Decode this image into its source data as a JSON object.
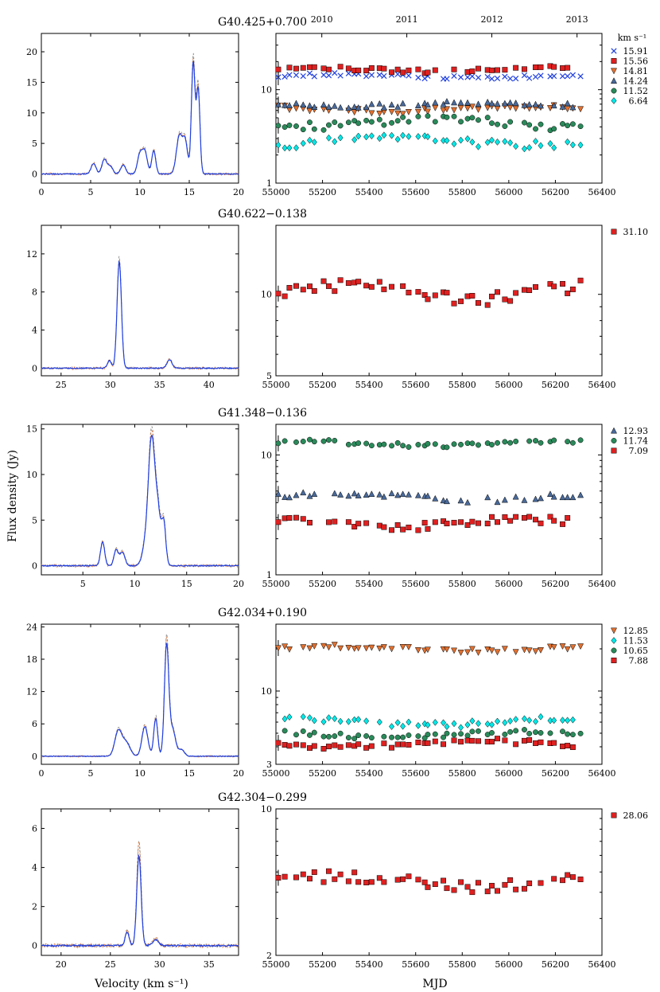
{
  "figure": {
    "ylabel": "Flux density (Jy)",
    "xlabel_left": "Velocity (km s⁻¹)",
    "xlabel_right": "MJD",
    "legend_unit": "km s⁻¹",
    "year_labels": [
      "2010",
      "2011",
      "2012",
      "2013"
    ],
    "year_mjd": [
      55197,
      55562,
      55927,
      56293
    ],
    "colors": {
      "blue": "#1f3fe0",
      "red": "#e02020",
      "orange": "#e07030",
      "cyan": "#00e8e8",
      "teal": "#2a8a5a",
      "grey": "#888888"
    }
  },
  "chart_data": [
    {
      "title": "G40.425+0.700",
      "spectrum": {
        "type": "line",
        "xlim": [
          0,
          20
        ],
        "ylim": [
          -1.5,
          23
        ],
        "xticks": [
          0,
          5,
          10,
          15,
          20
        ],
        "yticks": [
          0,
          5,
          10,
          15,
          20
        ],
        "baseline_noise": 0.15,
        "peaks": [
          [
            5.3,
            1.7,
            0.25
          ],
          [
            6.4,
            2.4,
            0.25
          ],
          [
            7.0,
            1.2,
            0.25
          ],
          [
            8.3,
            1.5,
            0.25
          ],
          [
            10.0,
            3.2,
            0.25
          ],
          [
            10.5,
            3.5,
            0.25
          ],
          [
            11.4,
            3.8,
            0.2
          ],
          [
            14.0,
            6.2,
            0.3
          ],
          [
            14.6,
            5.0,
            0.25
          ],
          [
            15.4,
            18.2,
            0.18
          ],
          [
            15.9,
            14.0,
            0.18
          ]
        ],
        "overlay_scale": 1.07
      },
      "timeseries": {
        "type": "scatter",
        "yscale": "log",
        "ylim": [
          1,
          40
        ],
        "xlim": [
          55000,
          56400
        ],
        "yticks": [
          1,
          10
        ],
        "xticks": [
          55000,
          55200,
          55400,
          55600,
          55800,
          56000,
          56200,
          56400
        ],
        "series": [
          {
            "name": "15.91",
            "marker": "x",
            "color": "#1f3fe0",
            "base": 14,
            "amp": 1.2
          },
          {
            "name": "15.56",
            "marker": "square",
            "color": "#e02020",
            "base": 16.5,
            "amp": 1.5
          },
          {
            "name": "14.81",
            "marker": "tri-down",
            "color": "#e07030",
            "base": 6.2,
            "amp": 0.8
          },
          {
            "name": "14.24",
            "marker": "tri-up",
            "color": "#4a6a9a",
            "base": 7.0,
            "amp": 0.7
          },
          {
            "name": "11.52",
            "marker": "circle",
            "color": "#2a8a5a",
            "base": 4.5,
            "amp": 0.9
          },
          {
            "name": "6.64",
            "marker": "diamond",
            "color": "#00e8e8",
            "base": 2.8,
            "amp": 0.5
          }
        ]
      }
    },
    {
      "title": "G40.622−0.138",
      "spectrum": {
        "type": "line",
        "xlim": [
          23,
          43
        ],
        "ylim": [
          -0.8,
          15
        ],
        "xticks": [
          25,
          30,
          35,
          40
        ],
        "yticks": [
          0,
          4,
          8,
          12
        ],
        "baseline_noise": 0.1,
        "peaks": [
          [
            29.9,
            0.8,
            0.2
          ],
          [
            30.9,
            11.2,
            0.22
          ],
          [
            36.0,
            0.9,
            0.25
          ]
        ],
        "overlay_scale": 1.05
      },
      "timeseries": {
        "type": "scatter",
        "yscale": "log",
        "ylim": [
          5,
          18
        ],
        "xlim": [
          55000,
          56400
        ],
        "yticks": [
          5,
          10
        ],
        "xticks": [
          55000,
          55200,
          55400,
          55600,
          55800,
          56000,
          56200,
          56400
        ],
        "series": [
          {
            "name": "31.10",
            "marker": "square",
            "color": "#e02020",
            "base": 10.2,
            "amp": 1.2
          }
        ]
      }
    },
    {
      "title": "G41.348−0.136",
      "spectrum": {
        "type": "line",
        "xlim": [
          1,
          20
        ],
        "ylim": [
          -1,
          15.5
        ],
        "xticks": [
          5,
          10,
          15,
          20
        ],
        "yticks": [
          0,
          5,
          10,
          15
        ],
        "baseline_noise": 0.12,
        "peaks": [
          [
            6.9,
            2.6,
            0.2
          ],
          [
            8.2,
            1.7,
            0.2
          ],
          [
            8.8,
            1.5,
            0.25
          ],
          [
            11.0,
            2.0,
            0.3
          ],
          [
            11.6,
            13.2,
            0.3
          ],
          [
            12.2,
            6.0,
            0.3
          ],
          [
            12.8,
            4.3,
            0.2
          ]
        ],
        "overlay_scale": 1.07
      },
      "timeseries": {
        "type": "scatter",
        "yscale": "log",
        "ylim": [
          1,
          18
        ],
        "xlim": [
          55000,
          56400
        ],
        "yticks": [
          1,
          10
        ],
        "xticks": [
          55000,
          55200,
          55400,
          55600,
          55800,
          56000,
          56200,
          56400
        ],
        "series": [
          {
            "name": "12.93",
            "marker": "tri-up",
            "color": "#4a6a9a",
            "base": 4.5,
            "amp": 0.5
          },
          {
            "name": "11.74",
            "marker": "circle",
            "color": "#2a8a5a",
            "base": 12.5,
            "amp": 1.0
          },
          {
            "name": "7.09",
            "marker": "square",
            "color": "#e02020",
            "base": 2.7,
            "amp": 0.4
          }
        ]
      }
    },
    {
      "title": "G42.034+0.190",
      "spectrum": {
        "type": "line",
        "xlim": [
          0,
          20
        ],
        "ylim": [
          -1.5,
          24.5
        ],
        "xticks": [
          0,
          5,
          10,
          15,
          20
        ],
        "yticks": [
          0,
          6,
          12,
          18,
          24
        ],
        "baseline_noise": 0.12,
        "peaks": [
          [
            7.8,
            4.6,
            0.35
          ],
          [
            8.6,
            2.5,
            0.4
          ],
          [
            10.5,
            5.5,
            0.3
          ],
          [
            11.6,
            7.0,
            0.2
          ],
          [
            12.7,
            20.3,
            0.22
          ],
          [
            13.3,
            5.0,
            0.3
          ],
          [
            14.2,
            1.2,
            0.3
          ]
        ],
        "overlay_scale": 1.08
      },
      "timeseries": {
        "type": "scatter",
        "yscale": "log",
        "ylim": [
          3,
          30
        ],
        "xlim": [
          55000,
          56400
        ],
        "yticks": [
          3,
          10
        ],
        "xticks": [
          55000,
          55200,
          55400,
          55600,
          55800,
          56000,
          56200,
          56400
        ],
        "series": [
          {
            "name": "12.85",
            "marker": "tri-down",
            "color": "#e07030",
            "base": 20,
            "amp": 1.5
          },
          {
            "name": "11.53",
            "marker": "diamond",
            "color": "#00e8e8",
            "base": 6.0,
            "amp": 0.6
          },
          {
            "name": "10.65",
            "marker": "circle",
            "color": "#2a8a5a",
            "base": 4.9,
            "amp": 0.4
          },
          {
            "name": "7.88",
            "marker": "square",
            "color": "#e02020",
            "base": 4.2,
            "amp": 0.4
          }
        ]
      }
    },
    {
      "title": "G42.304−0.299",
      "spectrum": {
        "type": "line",
        "xlim": [
          18,
          38
        ],
        "ylim": [
          -0.5,
          7
        ],
        "xticks": [
          20,
          25,
          30,
          35
        ],
        "yticks": [
          0,
          2,
          4,
          6
        ],
        "baseline_noise": 0.08,
        "peaks": [
          [
            26.7,
            0.7,
            0.2
          ],
          [
            27.9,
            4.6,
            0.22
          ],
          [
            29.6,
            0.3,
            0.3
          ]
        ],
        "overlay_scale": 1.18
      },
      "timeseries": {
        "type": "scatter",
        "yscale": "log",
        "ylim": [
          2,
          10
        ],
        "xlim": [
          55000,
          56400
        ],
        "yticks": [
          2,
          10
        ],
        "xticks": [
          55000,
          55200,
          55400,
          55600,
          55800,
          56000,
          56200,
          56400
        ],
        "series": [
          {
            "name": "28.06",
            "marker": "square",
            "color": "#e02020",
            "base": 4.5,
            "amp": 0.6
          }
        ]
      }
    }
  ]
}
